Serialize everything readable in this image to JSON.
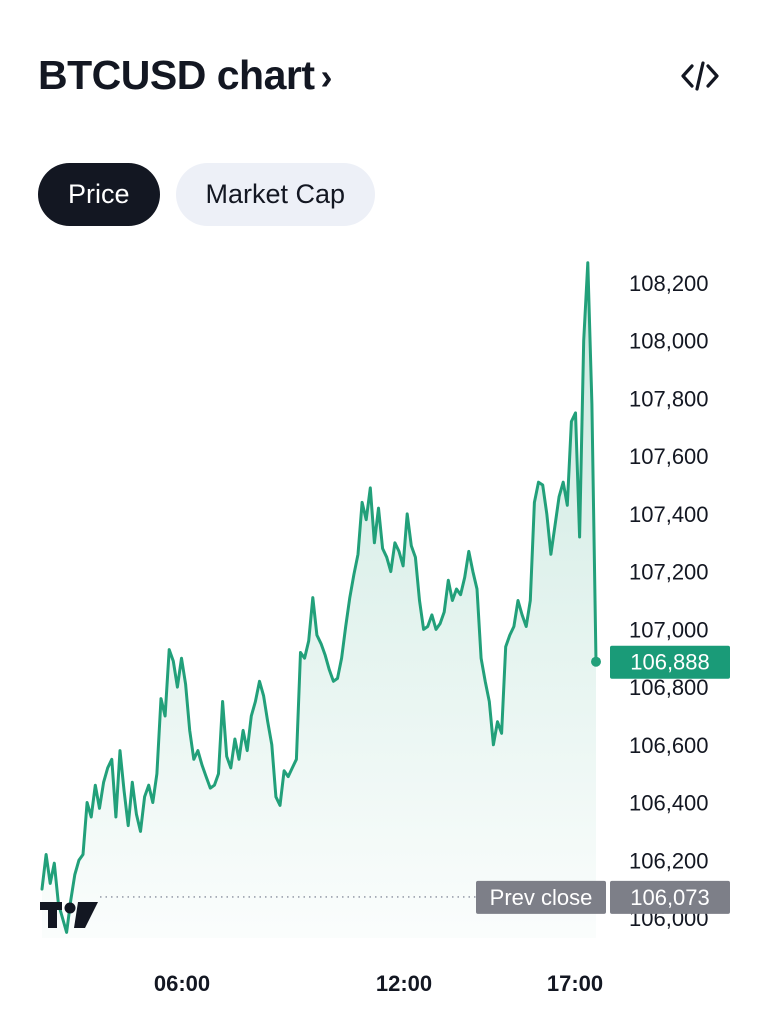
{
  "header": {
    "title": "BTCUSD chart",
    "title_chevron": "›",
    "embed_icon": "code-icon"
  },
  "tabs": [
    {
      "label": "Price",
      "active": true
    },
    {
      "label": "Market Cap",
      "active": false
    }
  ],
  "colors": {
    "line": "#22a07a",
    "label_bg": "#1a9b78",
    "prev_close_bg": "#7d7f88",
    "dark": "#131722"
  },
  "chart_data": {
    "type": "area",
    "symbol": "BTCUSD",
    "x_ticks": [
      "06:00",
      "12:00",
      "17:00"
    ],
    "y_ticks": [
      "108,200",
      "108,000",
      "107,800",
      "107,600",
      "107,400",
      "107,200",
      "107,000",
      "106,800",
      "106,600",
      "106,400",
      "106,200",
      "106,000"
    ],
    "y_tick_values": [
      108200,
      108000,
      107800,
      107600,
      107400,
      107200,
      107000,
      106800,
      106600,
      106400,
      106200,
      106000
    ],
    "ylim": [
      106000,
      108200
    ],
    "last_price": 106888,
    "last_price_label": "106,888",
    "prev_close": 106073,
    "prev_close_label": "106,073",
    "prev_close_text": "Prev close",
    "grid": false,
    "series": [
      {
        "values": [
          106100,
          106220,
          106120,
          106190,
          106050,
          106000,
          105950,
          106060,
          106150,
          106200,
          106220,
          106400,
          106350,
          106460,
          106380,
          106470,
          106520,
          106550,
          106350,
          106580,
          106440,
          106320,
          106470,
          106360,
          106300,
          106420,
          106460,
          106400,
          106500,
          106760,
          106700,
          106930,
          106890,
          106800,
          106900,
          106810,
          106650,
          106550,
          106580,
          106530,
          106490,
          106450,
          106460,
          106500,
          106750,
          106560,
          106520,
          106620,
          106550,
          106650,
          106580,
          106700,
          106750,
          106820,
          106770,
          106680,
          106600,
          106420,
          106390,
          106510,
          106490,
          106520,
          106550,
          106920,
          106900,
          106960,
          107110,
          106980,
          106950,
          106910,
          106860,
          106820,
          106830,
          106900,
          107010,
          107110,
          107190,
          107260,
          107440,
          107380,
          107490,
          107300,
          107420,
          107280,
          107250,
          107200,
          107300,
          107270,
          107220,
          107400,
          107290,
          107250,
          107100,
          107000,
          107010,
          107050,
          107000,
          107020,
          107060,
          107170,
          107100,
          107140,
          107120,
          107180,
          107270,
          107200,
          107140,
          106900,
          106820,
          106750,
          106600,
          106680,
          106640,
          106940,
          106980,
          107010,
          107100,
          107050,
          107010,
          107100,
          107440,
          107510,
          107500,
          107400,
          107260,
          107360,
          107460,
          107510,
          107430,
          107720,
          107750,
          107320,
          108000,
          108270,
          107780,
          106888
        ]
      }
    ]
  }
}
